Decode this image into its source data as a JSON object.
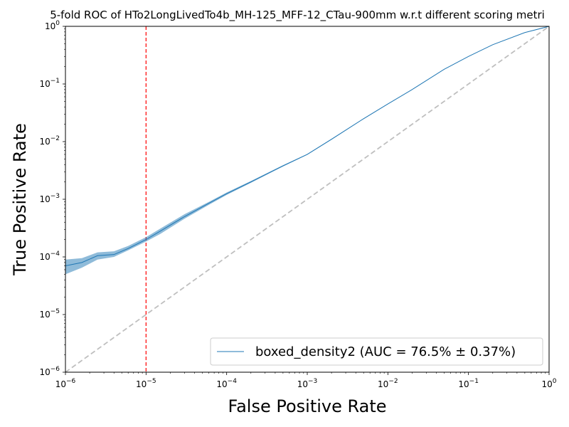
{
  "chart_data": {
    "type": "line",
    "title": "5-fold ROC of HTo2LongLivedTo4b_MH-125_MFF-12_CTau-900mm w.r.t different scoring metri",
    "xlabel": "False Positive Rate",
    "ylabel": "True Positive Rate",
    "xscale": "log",
    "yscale": "log",
    "xlim": [
      1e-06,
      1
    ],
    "ylim": [
      1e-06,
      1
    ],
    "x_ticks": [
      {
        "value": 1e-06,
        "base": "10",
        "exp": "−6"
      },
      {
        "value": 1e-05,
        "base": "10",
        "exp": "−5"
      },
      {
        "value": 0.0001,
        "base": "10",
        "exp": "−4"
      },
      {
        "value": 0.001,
        "base": "10",
        "exp": "−3"
      },
      {
        "value": 0.01,
        "base": "10",
        "exp": "−2"
      },
      {
        "value": 0.1,
        "base": "10",
        "exp": "−1"
      },
      {
        "value": 1,
        "base": "10",
        "exp": "0"
      }
    ],
    "y_ticks": [
      {
        "value": 1e-06,
        "base": "10",
        "exp": "−6"
      },
      {
        "value": 1e-05,
        "base": "10",
        "exp": "−5"
      },
      {
        "value": 0.0001,
        "base": "10",
        "exp": "−4"
      },
      {
        "value": 0.001,
        "base": "10",
        "exp": "−3"
      },
      {
        "value": 0.01,
        "base": "10",
        "exp": "−2"
      },
      {
        "value": 0.1,
        "base": "10",
        "exp": "−1"
      },
      {
        "value": 1,
        "base": "10",
        "exp": "0"
      }
    ],
    "legend_placement": "lower-right",
    "series": [
      {
        "name": "boxed_density2 (AUC = 76.5% ± 0.37%)",
        "color": "#1f77b4",
        "band_color": "#1f77b4",
        "points": [
          {
            "x": 1e-06,
            "y": 7e-05,
            "lo": 5e-05,
            "hi": 9e-05
          },
          {
            "x": 1.6e-06,
            "y": 8e-05,
            "lo": 6.5e-05,
            "hi": 9.5e-05
          },
          {
            "x": 2.5e-06,
            "y": 0.000105,
            "lo": 9e-05,
            "hi": 0.00012
          },
          {
            "x": 4e-06,
            "y": 0.00011,
            "lo": 0.0001,
            "hi": 0.000125
          },
          {
            "x": 6e-06,
            "y": 0.00014,
            "lo": 0.00013,
            "hi": 0.000155
          },
          {
            "x": 1e-05,
            "y": 0.0002,
            "lo": 0.000185,
            "hi": 0.00022
          },
          {
            "x": 1.5e-05,
            "y": 0.00028,
            "lo": 0.00025,
            "hi": 0.00031
          },
          {
            "x": 3e-05,
            "y": 0.0005,
            "lo": 0.00046,
            "hi": 0.00055
          },
          {
            "x": 6e-05,
            "y": 0.00085,
            "lo": 0.0008,
            "hi": 0.0009
          },
          {
            "x": 0.0001,
            "y": 0.00125,
            "lo": 0.00119,
            "hi": 0.00131
          },
          {
            "x": 0.0002,
            "y": 0.002,
            "lo": 0.00193,
            "hi": 0.00207
          },
          {
            "x": 0.0005,
            "y": 0.0038,
            "lo": 0.0037,
            "hi": 0.0039
          },
          {
            "x": 0.001,
            "y": 0.006,
            "lo": 0.0059,
            "hi": 0.0061
          },
          {
            "x": 0.002,
            "y": 0.011,
            "lo": 0.0108,
            "hi": 0.0112
          },
          {
            "x": 0.005,
            "y": 0.025,
            "lo": 0.0247,
            "hi": 0.0253
          },
          {
            "x": 0.01,
            "y": 0.045,
            "lo": 0.0445,
            "hi": 0.0455
          },
          {
            "x": 0.02,
            "y": 0.08,
            "lo": 0.0795,
            "hi": 0.0805
          },
          {
            "x": 0.05,
            "y": 0.18,
            "lo": 0.179,
            "hi": 0.181
          },
          {
            "x": 0.1,
            "y": 0.3,
            "lo": 0.299,
            "hi": 0.301
          },
          {
            "x": 0.2,
            "y": 0.48,
            "lo": 0.479,
            "hi": 0.481
          },
          {
            "x": 0.5,
            "y": 0.78,
            "lo": 0.779,
            "hi": 0.781
          },
          {
            "x": 1,
            "y": 1,
            "lo": 1,
            "hi": 1
          }
        ]
      }
    ],
    "reference_lines": [
      {
        "kind": "diagonal",
        "color": "#bfbfbf",
        "style": "dashed"
      },
      {
        "kind": "vertical",
        "x": 1e-05,
        "color": "#ff0000",
        "style": "dashed"
      }
    ]
  }
}
